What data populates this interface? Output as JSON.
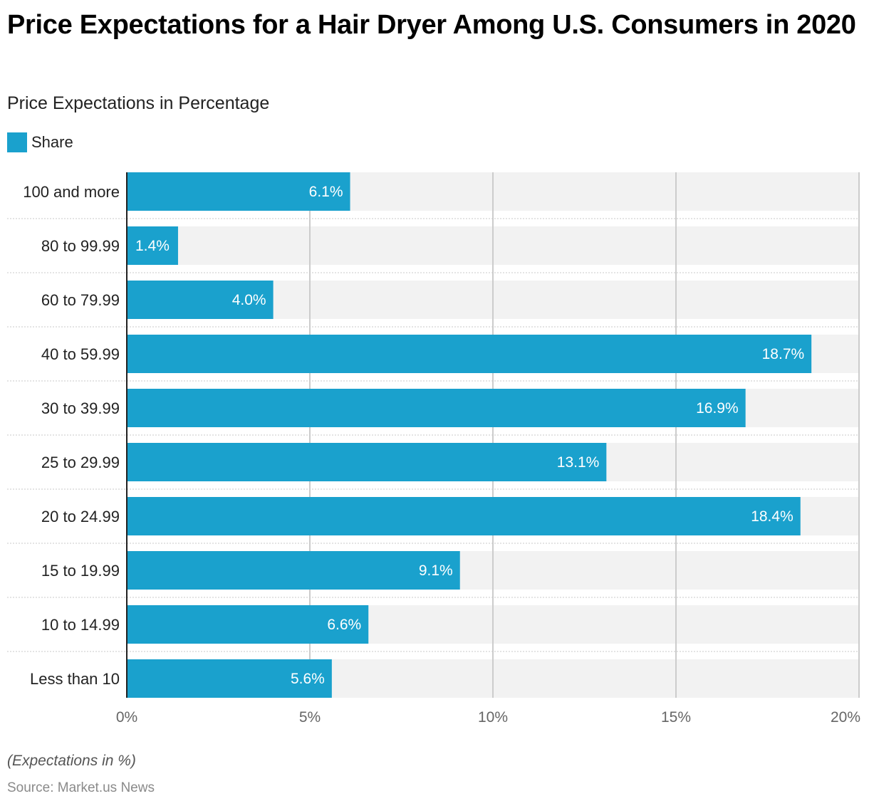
{
  "title": "Price Expectations for a Hair Dryer Among U.S. Consumers in 2020",
  "subtitle": "Price Expectations in Percentage",
  "legend": {
    "label": "Share",
    "color": "#1aa1cd"
  },
  "note": "(Expectations in %)",
  "source": "Source: Market.us News",
  "chart_data": {
    "type": "bar",
    "orientation": "horizontal",
    "title": "Price Expectations for a Hair Dryer Among U.S. Consumers in 2020",
    "subtitle": "Price Expectations in Percentage",
    "categories": [
      "100 and more",
      "80 to 99.99",
      "60 to 79.99",
      "40 to 59.99",
      "30 to 39.99",
      "25 to 29.99",
      "20 to 24.99",
      "15 to 19.99",
      "10 to 14.99",
      "Less than 10"
    ],
    "series": [
      {
        "name": "Share",
        "color": "#1aa1cd",
        "values": [
          6.1,
          1.4,
          4.0,
          18.7,
          16.9,
          13.1,
          18.4,
          9.1,
          6.6,
          5.6
        ]
      }
    ],
    "data_labels": [
      "6.1%",
      "1.4%",
      "4.0%",
      "18.7%",
      "16.9%",
      "13.1%",
      "18.4%",
      "9.1%",
      "6.6%",
      "5.6%"
    ],
    "xlabel": "",
    "ylabel": "",
    "xlim": [
      0,
      20
    ],
    "xticks": [
      0,
      5,
      10,
      15,
      20
    ],
    "xtick_labels": [
      "0%",
      "5%",
      "10%",
      "15%",
      "20%"
    ],
    "grid": true,
    "legend_position": "top-left"
  }
}
